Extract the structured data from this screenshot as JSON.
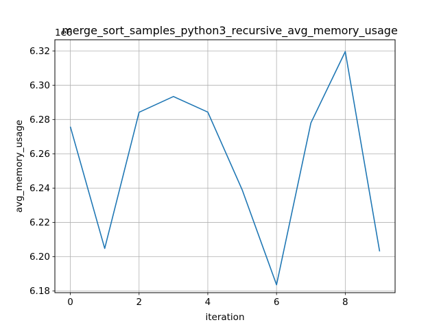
{
  "chart_data": {
    "type": "line",
    "title": "merge_sort_samples_python3_recursive_avg_memory_usage",
    "xlabel": "iteration",
    "ylabel": "avg_memory_usage",
    "y_offset_label": "1e6",
    "xlim": [
      -0.45,
      9.45
    ],
    "ylim": [
      6.179,
      6.3265
    ],
    "grid": true,
    "x_ticks": [
      0,
      2,
      4,
      6,
      8
    ],
    "x_tick_labels": [
      "0",
      "2",
      "4",
      "6",
      "8"
    ],
    "y_ticks": [
      6.18,
      6.2,
      6.22,
      6.24,
      6.26,
      6.28,
      6.3,
      6.32
    ],
    "y_tick_labels": [
      "6.18",
      "6.20",
      "6.22",
      "6.24",
      "6.26",
      "6.28",
      "6.30",
      "6.32"
    ],
    "series": [
      {
        "color": "#1f77b4",
        "x": [
          0,
          1,
          2,
          3,
          4,
          5,
          6,
          7,
          8,
          9
        ],
        "y": [
          6.2758,
          6.2048,
          6.2842,
          6.2934,
          6.2843,
          6.239,
          6.1836,
          6.278,
          6.3196,
          6.2031
        ]
      }
    ]
  }
}
